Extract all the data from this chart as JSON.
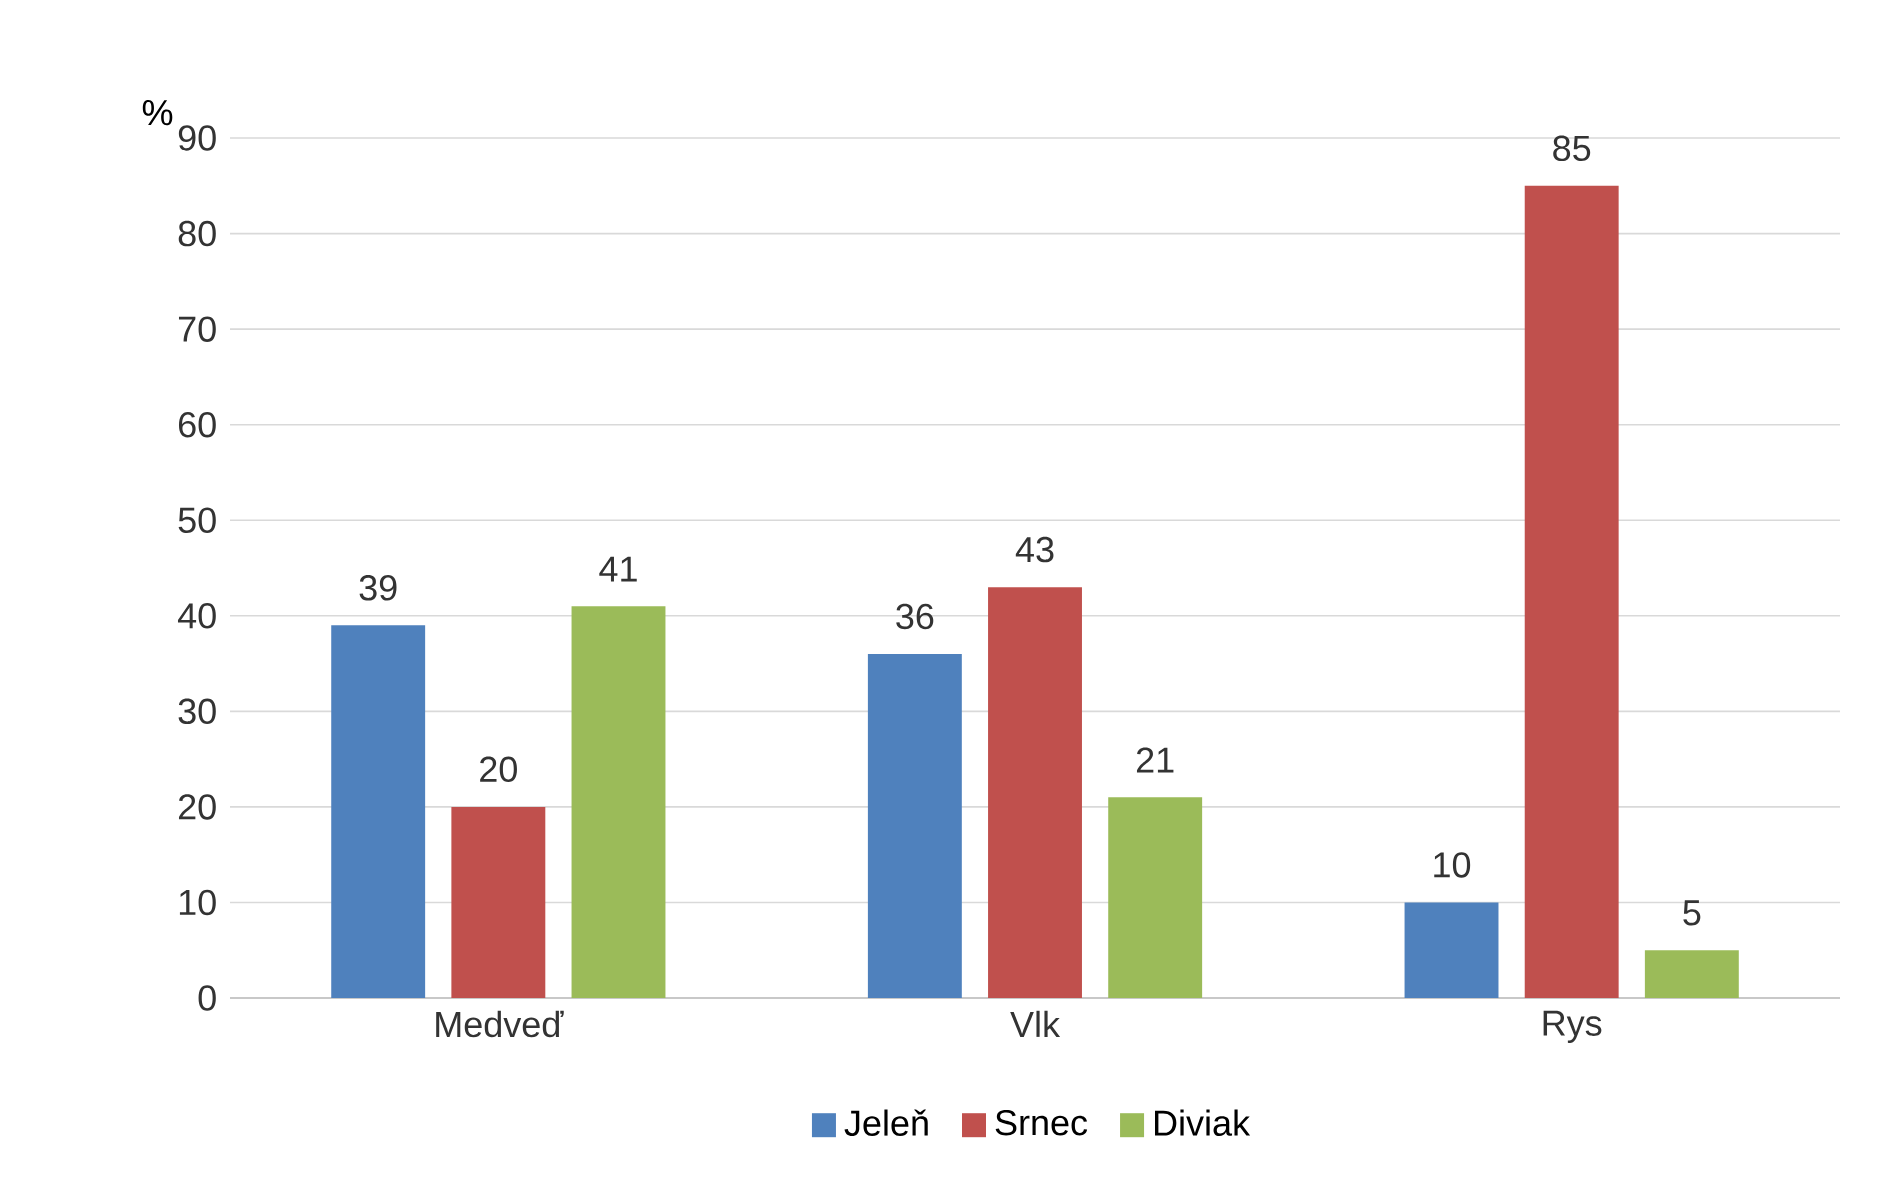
{
  "chart_data": {
    "type": "bar",
    "ylabel": "%",
    "categories": [
      "Medveď",
      "Vlk",
      "Rys"
    ],
    "series": [
      {
        "name": "Jeleň",
        "color": "#4f81bd",
        "values": [
          39,
          36,
          10
        ]
      },
      {
        "name": "Srnec",
        "color": "#c0504d",
        "values": [
          20,
          43,
          85
        ]
      },
      {
        "name": "Diviak",
        "color": "#9bbb59",
        "values": [
          41,
          21,
          5
        ]
      }
    ],
    "ylim": [
      0,
      90
    ],
    "yticks": [
      0,
      10,
      20,
      30,
      40,
      50,
      60,
      70,
      80,
      90
    ],
    "grid": "y",
    "legend": "bottom",
    "data_labels": true
  }
}
